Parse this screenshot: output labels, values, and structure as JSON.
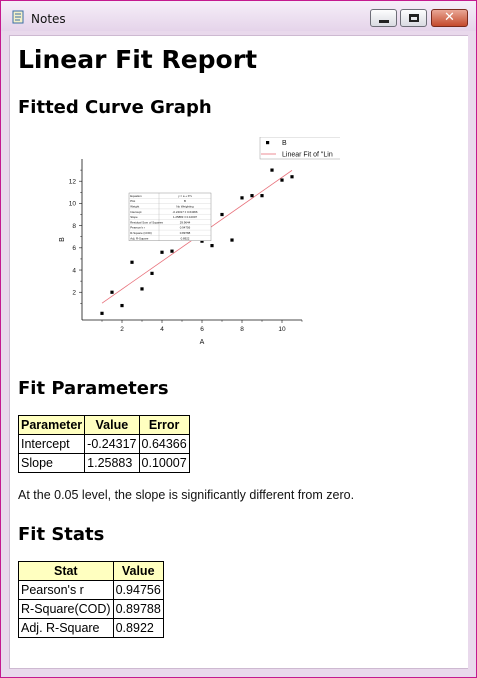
{
  "window": {
    "title": "Notes",
    "close_glyph": "✕"
  },
  "report": {
    "title": "Linear Fit Report",
    "graph_heading": "Fitted Curve Graph",
    "params_heading": "Fit Parameters",
    "stats_heading": "Fit Stats",
    "significance_note": "At the 0.05 level, the slope is significantly different from zero."
  },
  "fit_parameters": {
    "headers": [
      "Parameter",
      "Value",
      "Error"
    ],
    "rows": [
      [
        "Intercept",
        "-0.24317",
        "0.64366"
      ],
      [
        "Slope",
        "1.25883",
        "0.10007"
      ]
    ]
  },
  "fit_stats": {
    "headers": [
      "Stat",
      "Value"
    ],
    "rows": [
      [
        "Pearson's r",
        "0.94756"
      ],
      [
        "R-Square(COD)",
        "0.89788"
      ],
      [
        "Adj. R-Square",
        "0.8922"
      ]
    ]
  },
  "chart_data": {
    "type": "scatter",
    "xlabel": "A",
    "ylabel": "B",
    "xlim": [
      0,
      11
    ],
    "ylim": [
      -0.5,
      14
    ],
    "x_ticks": [
      "2",
      "4",
      "6",
      "8",
      "10"
    ],
    "y_ticks": [
      "2",
      "4",
      "6",
      "8",
      "10",
      "12"
    ],
    "series": [
      {
        "name": "B",
        "x": [
          1,
          1.5,
          2,
          2.5,
          3,
          3.5,
          4,
          4.5,
          5,
          6,
          6.5,
          7,
          7.5,
          8,
          8.5,
          9,
          9.5,
          10,
          10.5
        ],
        "y": [
          0.1,
          2,
          0.8,
          4.7,
          2.3,
          3.7,
          5.6,
          5.7,
          6.8,
          6.6,
          6.2,
          9,
          6.7,
          10.5,
          10.7,
          10.7,
          13,
          12.1,
          12.4
        ]
      },
      {
        "name": "Linear Fit of \"Lin",
        "fit": {
          "intercept": -0.24317,
          "slope": 1.25883,
          "x_range": [
            1,
            10.5
          ]
        }
      }
    ],
    "legend_position": "top-right",
    "inset_table": {
      "rows": [
        [
          "Equation",
          "y = a + b*x"
        ],
        [
          "Plot",
          "B"
        ],
        [
          "Weight",
          "No Weighting"
        ],
        [
          "Intercept",
          "-0.24317 ± 0.64366"
        ],
        [
          "Slope",
          "1.25883 ± 0.10007"
        ],
        [
          "Residual Sum of Squares",
          "29.9644"
        ],
        [
          "Pearson's r",
          "0.94756"
        ],
        [
          "R-Square (COD)",
          "0.89788"
        ],
        [
          "Adj. R-Square",
          "0.8922"
        ]
      ]
    }
  }
}
